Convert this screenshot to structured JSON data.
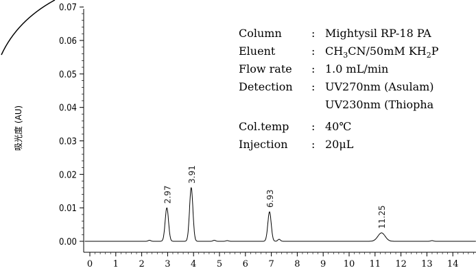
{
  "chart_data": {
    "type": "line",
    "title": "",
    "xlabel": "",
    "ylabel": "吸光度 (AU)",
    "xlim": [
      0,
      15
    ],
    "ylim": [
      -0.005,
      0.072
    ],
    "x_ticks": [
      "0",
      "1",
      "2",
      "3",
      "4",
      "5",
      "6",
      "7",
      "8",
      "9",
      "10",
      "11",
      "12",
      "13",
      "14"
    ],
    "y_ticks": [
      "0.00",
      "0.01",
      "0.02",
      "0.03",
      "0.04",
      "0.05",
      "0.06",
      "0.07"
    ],
    "grid": false,
    "series": [
      {
        "peaks": [
          {
            "retention_time": 2.97,
            "label": "2.97",
            "height": 0.01
          },
          {
            "retention_time": 3.91,
            "label": "3.91",
            "height": 0.016
          },
          {
            "retention_time": 6.93,
            "label": "6.93",
            "height": 0.0088
          },
          {
            "retention_time": 11.25,
            "label": "11.25",
            "height": 0.0025
          }
        ],
        "baseline": 0.0
      }
    ],
    "conditions": [
      {
        "key": "Column",
        "sep": ":",
        "value": "Mightysil RP-18 PA"
      },
      {
        "key": "Eluent",
        "sep": ":",
        "value_pre": "CH",
        "value_sub1": "3",
        "value_mid": "CN/50mM KH",
        "value_sub2": "2",
        "value_post": "P"
      },
      {
        "key": "Flow rate",
        "sep": ":",
        "value": "1.0 mL/min"
      },
      {
        "key": "Detection",
        "sep": ":",
        "value": "UV270nm (Asulam)"
      },
      {
        "key": "",
        "sep": "",
        "value": "UV230nm (Thiopha"
      },
      {
        "key": "Col.temp",
        "sep": ":",
        "value": "40℃"
      },
      {
        "key": "Injection",
        "sep": ":",
        "value": "20μL"
      }
    ]
  }
}
